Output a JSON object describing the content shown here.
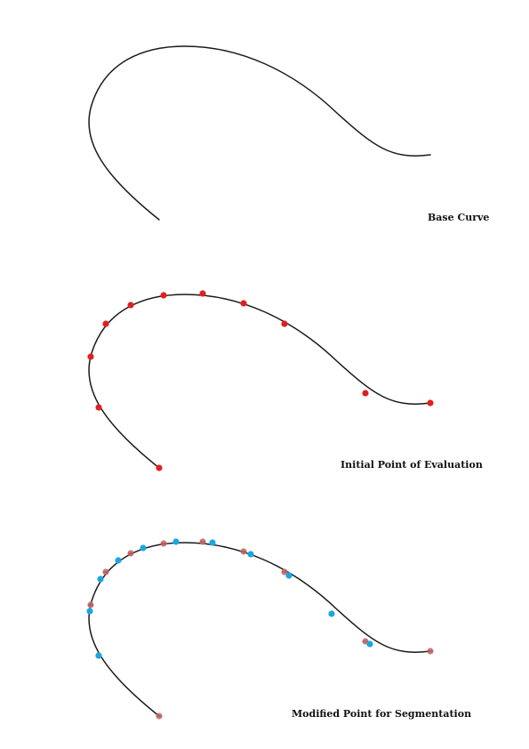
{
  "panels": [
    {
      "caption": "Base Curve",
      "markers": []
    },
    {
      "caption": "Initial Point of Evaluation",
      "markers": [
        "initial"
      ]
    },
    {
      "caption": "Modified Point for Segmentation",
      "markers": [
        "initial",
        "modified"
      ]
    }
  ],
  "colors": {
    "curve": "#1a1a1a",
    "initial_point": "#e02020",
    "initial_point_faded": "#c26a6a",
    "modified_point": "#1aa7de"
  }
}
